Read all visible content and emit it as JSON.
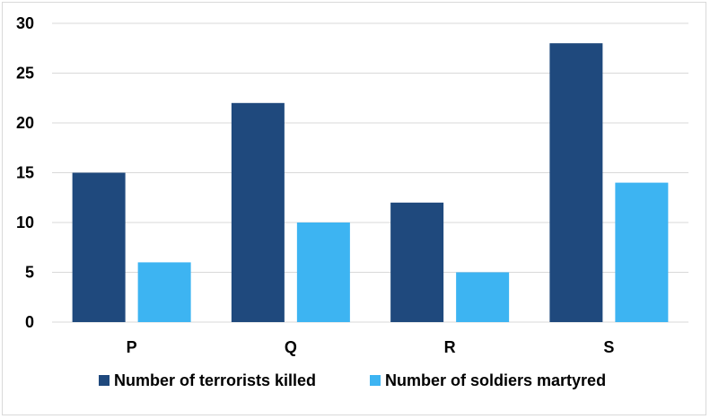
{
  "chart_data": {
    "type": "bar",
    "categories": [
      "P",
      "Q",
      "R",
      "S"
    ],
    "series": [
      {
        "name": "Number of terrorists killed",
        "values": [
          15,
          22,
          12,
          28
        ],
        "color": "#1f497d"
      },
      {
        "name": "Number of soldiers martyred",
        "values": [
          6,
          10,
          5,
          14
        ],
        "color": "#3db4f2"
      }
    ],
    "ylim": [
      0,
      30
    ],
    "yticks": [
      0,
      5,
      10,
      15,
      20,
      25,
      30
    ],
    "grid": true,
    "legend_position": "bottom",
    "gridline_color": "#d9d9d9"
  }
}
